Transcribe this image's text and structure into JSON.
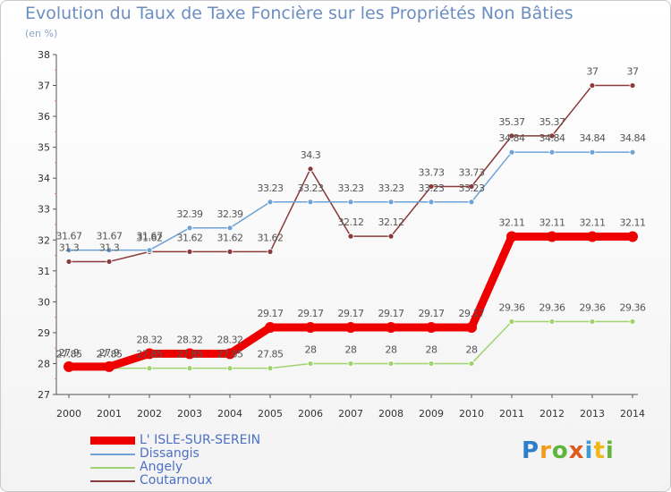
{
  "title": "Evolution du Taux de Taxe Foncière sur les Propriétés Non Bâties",
  "unit_label": "(en %)",
  "brand": "Proxiti",
  "chart_data": {
    "type": "line",
    "title": "Evolution du Taux de Taxe Foncière sur les Propriétés Non Bâties",
    "ylabel": "(en %)",
    "xlabel": "",
    "ylim": [
      27,
      38
    ],
    "yticks": [
      "27",
      "28",
      "29",
      "30",
      "31",
      "32",
      "33",
      "34",
      "35",
      "36",
      "37",
      "38"
    ],
    "categories": [
      "2000",
      "2001",
      "2002",
      "2003",
      "2004",
      "2005",
      "2006",
      "2007",
      "2008",
      "2009",
      "2010",
      "2011",
      "2012",
      "2013",
      "2014"
    ],
    "grid": false,
    "legend_position": "bottom-left",
    "series": [
      {
        "name": "L' ISLE-SUR-SEREIN",
        "color": "#ee0000",
        "values": [
          27.9,
          27.9,
          28.32,
          28.32,
          28.32,
          29.17,
          29.17,
          29.17,
          29.17,
          29.17,
          29.17,
          32.11,
          32.11,
          32.11,
          32.11
        ],
        "labels": [
          "27.9",
          "27.9",
          "28.32",
          "28.32",
          "28.32",
          "29.17",
          "29.17",
          "29.17",
          "29.17",
          "29.17",
          "29.17",
          "32.11",
          "32.11",
          "32.11",
          "32.11"
        ]
      },
      {
        "name": "Dissangis",
        "color": "#6fa3d8",
        "values": [
          31.67,
          31.67,
          31.67,
          32.39,
          32.39,
          33.23,
          33.23,
          33.23,
          33.23,
          33.23,
          33.23,
          34.84,
          34.84,
          34.84,
          34.84
        ],
        "labels": [
          "31.67",
          "31.67",
          "31.67",
          "32.39",
          "32.39",
          "33.23",
          "33.23",
          "33.23",
          "33.23",
          "33.23",
          "33.23",
          "34.84",
          "34.84",
          "34.84",
          "34.84"
        ]
      },
      {
        "name": "Angely",
        "color": "#9fd36f",
        "values": [
          27.85,
          27.85,
          27.85,
          27.85,
          27.85,
          27.85,
          28,
          28,
          28,
          28,
          28,
          29.36,
          29.36,
          29.36,
          29.36
        ],
        "labels": [
          "27.85",
          "27.85",
          "27.85",
          "27.85",
          "27.85",
          "27.85",
          "28",
          "28",
          "28",
          "28",
          "28",
          "29.36",
          "29.36",
          "29.36",
          "29.36"
        ]
      },
      {
        "name": "Coutarnoux",
        "color": "#8a3a3a",
        "values": [
          31.3,
          31.3,
          31.62,
          31.62,
          31.62,
          31.62,
          34.3,
          32.12,
          32.12,
          33.73,
          33.73,
          35.37,
          35.37,
          37,
          37
        ],
        "labels": [
          "31.3",
          "31.3",
          "31.62",
          "31.62",
          "31.62",
          "31.62",
          "34.3",
          "32.12",
          "32.12",
          "33.73",
          "33.73",
          "35.37",
          "35.37",
          "37",
          "37"
        ]
      }
    ]
  }
}
